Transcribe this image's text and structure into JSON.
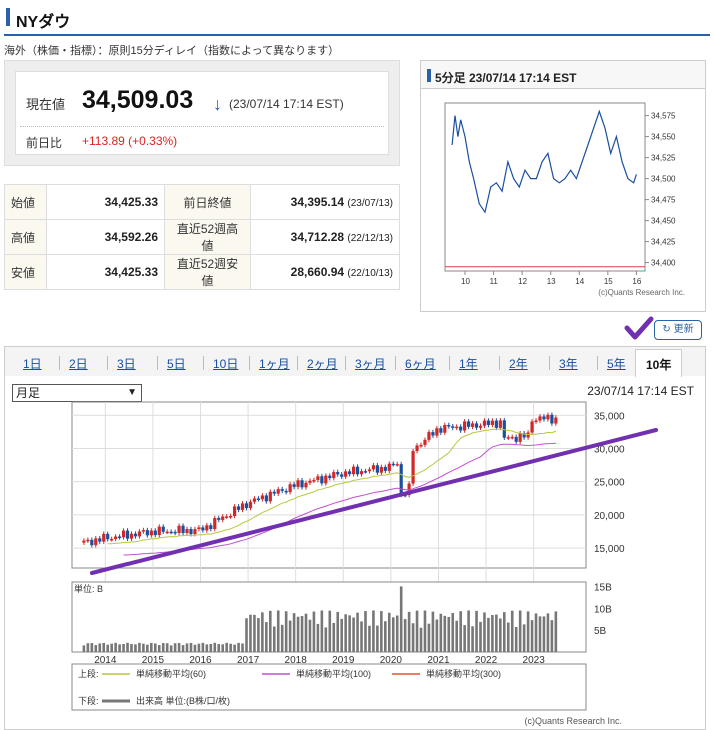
{
  "header": {
    "title": "NYダウ",
    "note": "海外（株価・指標）：原則15分ディレイ（指数によって異なります）"
  },
  "quote": {
    "current_label": "現在値",
    "price": "34,509.03",
    "arrow": "↓",
    "time": "(23/07/14 17:14 EST)",
    "change_label": "前日比",
    "change": "+113.89 (+0.33%)"
  },
  "stats": [
    {
      "label": "始値",
      "value": "34,425.33",
      "label2": "前日終値",
      "value2": "34,395.14",
      "date2": "(23/07/13)"
    },
    {
      "label": "高値",
      "value": "34,592.26",
      "label2": "直近52週高値",
      "value2": "34,712.28",
      "date2": "(22/12/13)"
    },
    {
      "label": "安値",
      "value": "34,425.33",
      "label2": "直近52週安値",
      "value2": "28,660.94",
      "date2": "(22/10/13)"
    }
  ],
  "intraday": {
    "title": "5分足 23/07/14 17:14 EST",
    "y_ticks": [
      "34,575",
      "34,550",
      "34,525",
      "34,500",
      "34,475",
      "34,450",
      "34,425",
      "34,400"
    ],
    "x_ticks": [
      "10",
      "11",
      "12",
      "13",
      "14",
      "15",
      "16"
    ],
    "credit": "(c)Quants Research Inc.",
    "colors": {
      "line": "#1a4fa0",
      "prev_close": "#e04040"
    }
  },
  "update_label": "更新",
  "tabs": [
    {
      "label": "1日",
      "active": false
    },
    {
      "label": "2日",
      "active": false
    },
    {
      "label": "3日",
      "active": false
    },
    {
      "label": "5日",
      "active": false
    },
    {
      "label": "10日",
      "active": false
    },
    {
      "label": "1ヶ月",
      "active": false
    },
    {
      "label": "2ヶ月",
      "active": false
    },
    {
      "label": "3ヶ月",
      "active": false
    },
    {
      "label": "6ヶ月",
      "active": false
    },
    {
      "label": "1年",
      "active": false
    },
    {
      "label": "2年",
      "active": false
    },
    {
      "label": "3年",
      "active": false
    },
    {
      "label": "5年",
      "active": false
    },
    {
      "label": "10年",
      "active": true
    }
  ],
  "period_select": {
    "value": "月足"
  },
  "long_term": {
    "time": "23/07/14 17:14 EST",
    "price_ticks": [
      "35,000",
      "30,000",
      "25,000",
      "20,000",
      "15,000"
    ],
    "volume_unit": "単位: B",
    "volume_ticks": [
      "15B",
      "10B",
      "5B"
    ],
    "year_ticks": [
      "2014",
      "2015",
      "2016",
      "2017",
      "2018",
      "2019",
      "2020",
      "2021",
      "2022",
      "2023"
    ],
    "legend_upper_label": "上段:",
    "legend_lower_label": "下段:",
    "legend_items": [
      "単純移動平均(60)",
      "単純移動平均(100)",
      "単純移動平均(300)"
    ],
    "legend_volume": "出来高 単位:(B株/口/枚)",
    "credit": "(c)Quants Research Inc.",
    "colors": {
      "up": "#d02828",
      "down": "#1a4fa0",
      "ma60": "#b8c83a",
      "ma100": "#c050d0",
      "ma300": "#e05030",
      "trendline": "#7030b0",
      "volume": "#777777"
    }
  },
  "chart_data": [
    {
      "type": "line",
      "title": "5分足 23/07/14 17:14 EST",
      "x_ticks": [
        10,
        11,
        12,
        13,
        14,
        15,
        16
      ],
      "ylim": [
        34390,
        34590
      ],
      "x": [
        9.55,
        9.65,
        9.75,
        9.85,
        10.0,
        10.15,
        10.3,
        10.5,
        10.7,
        10.9,
        11.1,
        11.3,
        11.5,
        11.7,
        11.9,
        12.1,
        12.3,
        12.5,
        12.7,
        12.9,
        13.1,
        13.3,
        13.5,
        13.7,
        13.9,
        14.1,
        14.3,
        14.5,
        14.7,
        14.9,
        15.1,
        15.3,
        15.5,
        15.7,
        15.9,
        16.0
      ],
      "values": [
        34540,
        34575,
        34550,
        34570,
        34550,
        34520,
        34500,
        34470,
        34460,
        34490,
        34495,
        34485,
        34520,
        34500,
        34490,
        34510,
        34500,
        34500,
        34520,
        34530,
        34500,
        34495,
        34500,
        34510,
        34500,
        34520,
        34540,
        34560,
        34580,
        34560,
        34530,
        34550,
        34520,
        34500,
        34495,
        34505
      ]
    },
    {
      "type": "bar",
      "title": "NYダウ 10年 月足",
      "categories": [
        "2014",
        "2015",
        "2016",
        "2017",
        "2018",
        "2019",
        "2020",
        "2021",
        "2022",
        "2023"
      ],
      "series": [
        {
          "values": [
            16500,
            17500,
            17700,
            21800,
            24500,
            26300,
            27200,
            33000,
            33700,
            34500
          ]
        }
      ],
      "ylim": [
        12000,
        37000
      ]
    }
  ]
}
